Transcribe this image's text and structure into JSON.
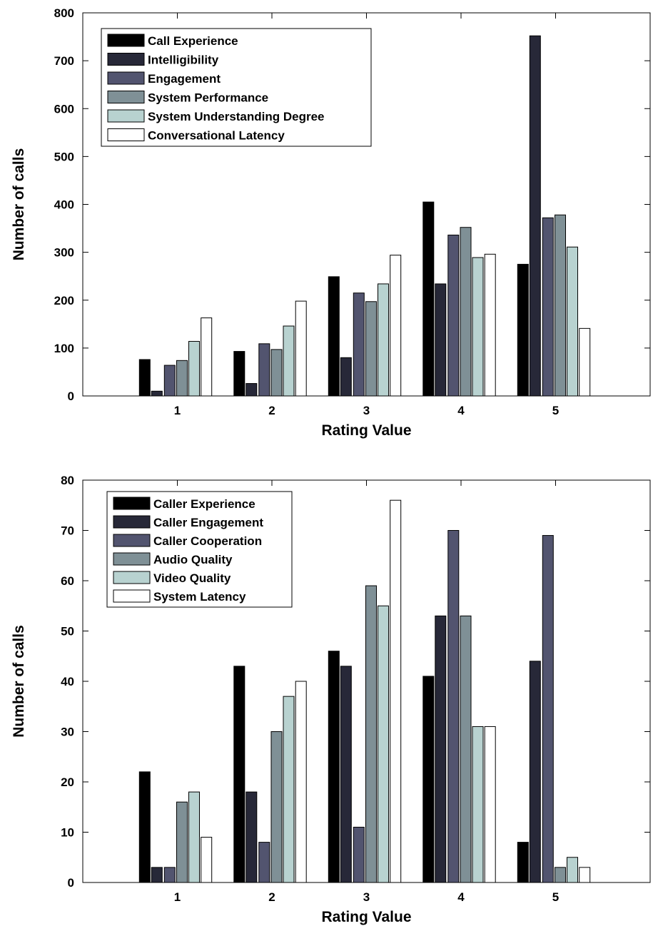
{
  "colors": [
    "#000000",
    "#272838",
    "#52546f",
    "#7f9096",
    "#b8d2d0",
    "#ffffff"
  ],
  "chart_data": [
    {
      "type": "bar",
      "categories": [
        "1",
        "2",
        "3",
        "4",
        "5"
      ],
      "xlabel": "Rating Value",
      "ylabel": "Number of calls",
      "ylim": [
        0,
        800
      ],
      "yticks": [
        0,
        100,
        200,
        300,
        400,
        500,
        600,
        700,
        800
      ],
      "legend_position": "top-left",
      "series": [
        {
          "name": "Call Experience",
          "values": [
            76,
            93,
            249,
            405,
            275
          ]
        },
        {
          "name": "Intelligibility",
          "values": [
            10,
            26,
            80,
            234,
            752
          ]
        },
        {
          "name": "Engagement",
          "values": [
            64,
            109,
            215,
            336,
            372
          ]
        },
        {
          "name": "System Performance",
          "values": [
            74,
            97,
            197,
            352,
            378
          ]
        },
        {
          "name": "System Understanding Degree",
          "values": [
            114,
            146,
            234,
            289,
            311
          ]
        },
        {
          "name": "Conversational Latency",
          "values": [
            163,
            198,
            294,
            296,
            141
          ]
        }
      ]
    },
    {
      "type": "bar",
      "categories": [
        "1",
        "2",
        "3",
        "4",
        "5"
      ],
      "xlabel": "Rating Value",
      "ylabel": "Number of calls",
      "ylim": [
        0,
        80
      ],
      "yticks": [
        0,
        10,
        20,
        30,
        40,
        50,
        60,
        70,
        80
      ],
      "legend_position": "top-left",
      "series": [
        {
          "name": "Caller Experience",
          "values": [
            22,
            43,
            46,
            41,
            8
          ]
        },
        {
          "name": "Caller Engagement",
          "values": [
            3,
            18,
            43,
            53,
            44
          ]
        },
        {
          "name": "Caller Cooperation",
          "values": [
            3,
            8,
            11,
            70,
            69
          ]
        },
        {
          "name": "Audio Quality",
          "values": [
            16,
            30,
            59,
            53,
            3
          ]
        },
        {
          "name": "Video Quality",
          "values": [
            18,
            37,
            55,
            31,
            5
          ]
        },
        {
          "name": "System Latency",
          "values": [
            9,
            40,
            76,
            31,
            3
          ]
        }
      ]
    }
  ]
}
